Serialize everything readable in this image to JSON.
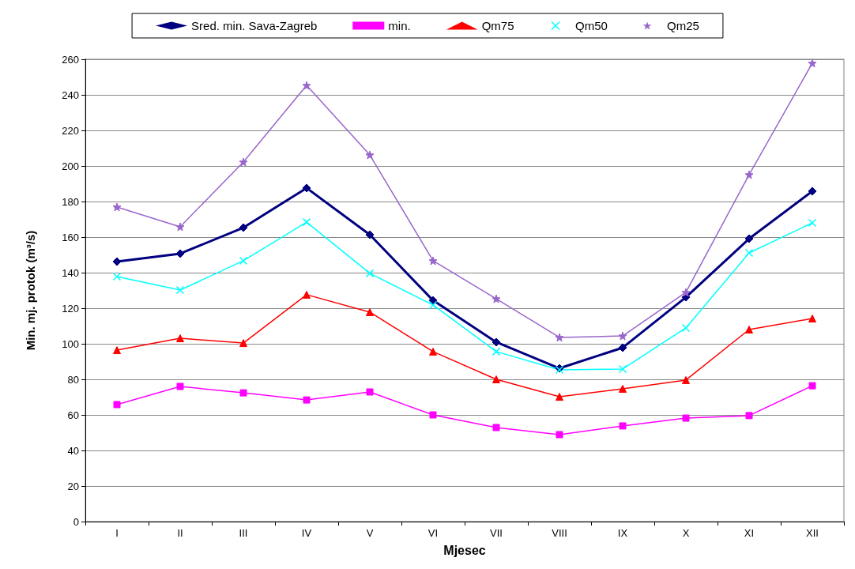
{
  "chart_data": {
    "type": "line",
    "xlabel": "Mjesec",
    "ylabel": "Min. mj. protok (m³/s)",
    "categories": [
      "I",
      "II",
      "III",
      "IV",
      "V",
      "VI",
      "VII",
      "VIII",
      "IX",
      "X",
      "XI",
      "XII"
    ],
    "ylim": [
      0,
      260
    ],
    "yticks": [
      0,
      20,
      40,
      60,
      80,
      100,
      120,
      140,
      160,
      180,
      200,
      220,
      240,
      260
    ],
    "grid": "y",
    "legend": "top",
    "series": [
      {
        "name": "Sred. min. Sava-Zagreb",
        "color": "#000080",
        "marker": "diamond",
        "values": [
          146.2,
          150.7,
          165.3,
          187.6,
          161.3,
          124.4,
          100.9,
          86.2,
          97.8,
          126.2,
          159.1,
          185.8
        ]
      },
      {
        "name": "min.",
        "color": "#ff00ff",
        "marker": "square",
        "values": [
          65.8,
          76,
          72.4,
          68.4,
          72.9,
          60,
          52.9,
          48.9,
          53.8,
          58.2,
          59.6,
          76.4
        ]
      },
      {
        "name": "Qm75",
        "color": "#ff0000",
        "marker": "triangle",
        "values": [
          96.4,
          103.1,
          100.4,
          127.6,
          117.8,
          95.6,
          80,
          70.2,
          74.7,
          79.6,
          108,
          114.2
        ]
      },
      {
        "name": "Qm50",
        "color": "#00ffff",
        "marker": "cross",
        "values": [
          137.8,
          130.2,
          146.7,
          168.4,
          139.6,
          121.8,
          95.6,
          85.3,
          85.8,
          108.9,
          151.1,
          168
        ]
      },
      {
        "name": "Qm25",
        "color": "#9966cc",
        "marker": "star",
        "values": [
          176.9,
          165.8,
          202.2,
          245.3,
          206.2,
          146.7,
          125.3,
          103.6,
          104.4,
          128.9,
          195.1,
          257.8
        ]
      }
    ]
  }
}
